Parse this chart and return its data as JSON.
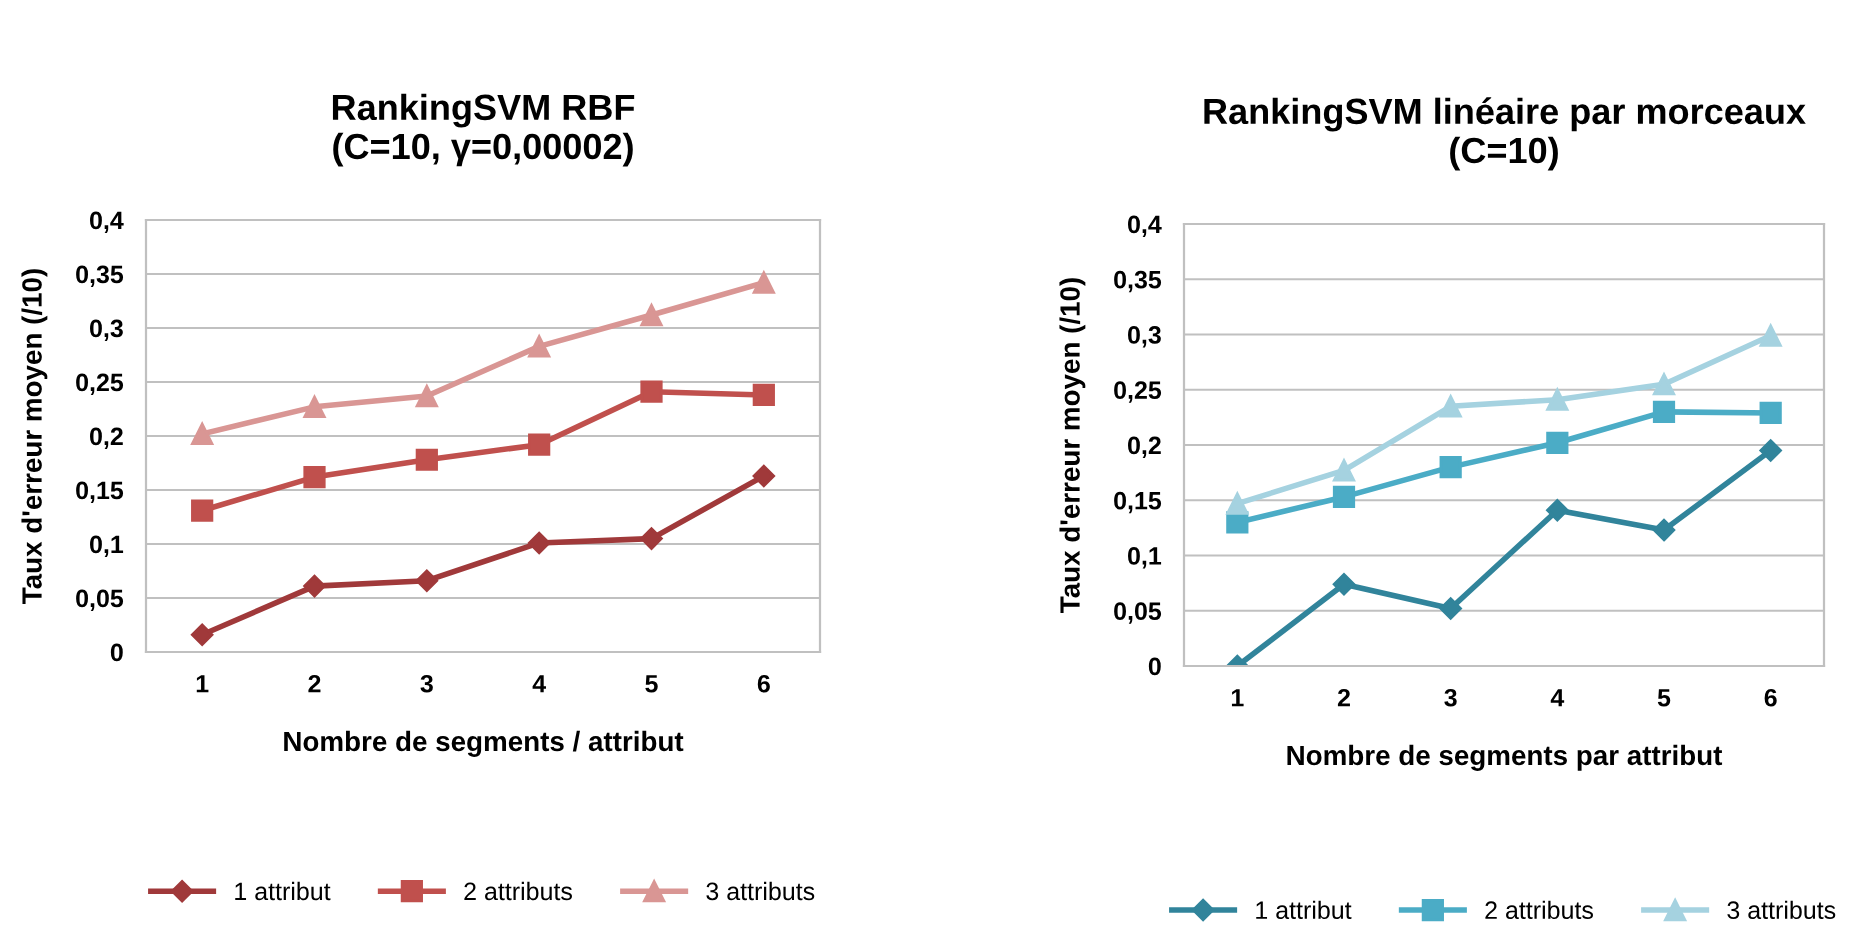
{
  "chart_data": [
    {
      "type": "line",
      "title": "RankingSVM RBF\n(C=10, γ=0,00002)",
      "xlabel": "Nombre de segments / attribut",
      "ylabel": "Taux d'erreur moyen (/10)",
      "categories": [
        "1",
        "2",
        "3",
        "4",
        "5",
        "6"
      ],
      "series": [
        {
          "name": "1 attribut",
          "color": "#a0393a",
          "marker": "diamond",
          "values": [
            0.016,
            0.061,
            0.066,
            0.101,
            0.105,
            0.163
          ]
        },
        {
          "name": "2 attributs",
          "color": "#c0504d",
          "marker": "square",
          "values": [
            0.131,
            0.162,
            0.178,
            0.192,
            0.241,
            0.238
          ]
        },
        {
          "name": "3 attributs",
          "color": "#d99694",
          "marker": "triangle",
          "values": [
            0.202,
            0.227,
            0.237,
            0.283,
            0.312,
            0.342
          ]
        }
      ],
      "ylim": [
        0,
        0.4
      ],
      "yticks": [
        {
          "value": 0,
          "label": "0"
        },
        {
          "value": 0.05,
          "label": "0,05"
        },
        {
          "value": 0.1,
          "label": "0,1"
        },
        {
          "value": 0.15,
          "label": "0,15"
        },
        {
          "value": 0.2,
          "label": "0,2"
        },
        {
          "value": 0.25,
          "label": "0,25"
        },
        {
          "value": 0.3,
          "label": "0,3"
        },
        {
          "value": 0.35,
          "label": "0,35"
        },
        {
          "value": 0.4,
          "label": "0,4"
        }
      ],
      "grid": "y",
      "legend": "bottom"
    },
    {
      "type": "line",
      "title": "RankingSVM linéaire par morceaux\n(C=10)",
      "xlabel": "Nombre de segments par attribut",
      "ylabel": "Taux d'erreur moyen (/10)",
      "categories": [
        "1",
        "2",
        "3",
        "4",
        "5",
        "6"
      ],
      "series": [
        {
          "name": "1 attribut",
          "color": "#31849b",
          "marker": "diamond",
          "values": [
            0,
            0.074,
            0.052,
            0.141,
            0.123,
            0.195
          ]
        },
        {
          "name": "2 attributs",
          "color": "#4bacc6",
          "marker": "square",
          "values": [
            0.13,
            0.153,
            0.18,
            0.202,
            0.23,
            0.229
          ]
        },
        {
          "name": "3 attributs",
          "color": "#a5d2e0",
          "marker": "triangle",
          "values": [
            0.147,
            0.177,
            0.235,
            0.241,
            0.255,
            0.299
          ]
        }
      ],
      "ylim": [
        0,
        0.4
      ],
      "yticks": [
        {
          "value": 0,
          "label": "0"
        },
        {
          "value": 0.05,
          "label": "0,05"
        },
        {
          "value": 0.1,
          "label": "0,1"
        },
        {
          "value": 0.15,
          "label": "0,15"
        },
        {
          "value": 0.2,
          "label": "0,2"
        },
        {
          "value": 0.25,
          "label": "0,25"
        },
        {
          "value": 0.3,
          "label": "0,3"
        },
        {
          "value": 0.35,
          "label": "0,35"
        },
        {
          "value": 0.4,
          "label": "0,4"
        }
      ],
      "grid": "y",
      "legend": "bottom"
    }
  ]
}
